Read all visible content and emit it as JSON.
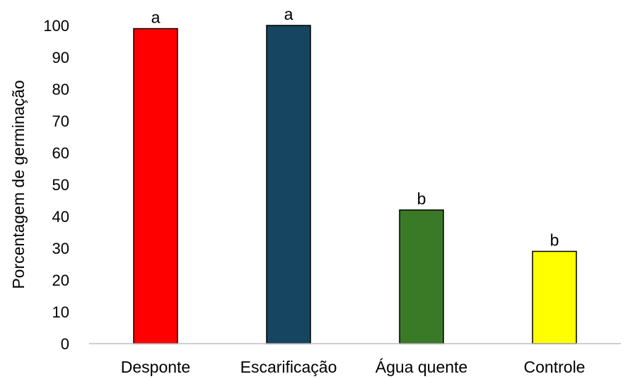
{
  "chart_data": {
    "type": "bar",
    "title": "",
    "xlabel": "",
    "ylabel": "Porcentagem de germinação",
    "ylim": [
      0,
      100
    ],
    "yticks": [
      0,
      10,
      20,
      30,
      40,
      50,
      60,
      70,
      80,
      90,
      100
    ],
    "grid": false,
    "legend": "none",
    "categories": [
      "Desponte",
      "Escarificação",
      "Água quente",
      "Controle"
    ],
    "values": [
      99,
      100,
      42,
      29
    ],
    "data_labels": [
      "a",
      "a",
      "b",
      "b"
    ],
    "colors": [
      "#FF0000",
      "#154560",
      "#3A7A27",
      "#FFFF00"
    ]
  }
}
